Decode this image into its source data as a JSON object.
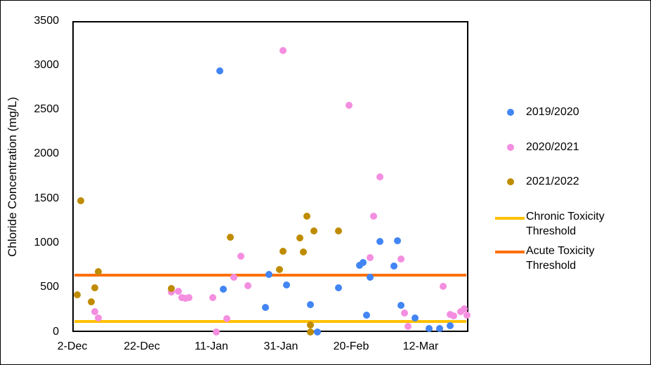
{
  "chart_data": {
    "type": "scatter",
    "title": "",
    "xlabel": "",
    "ylabel": "Chloride Concentration (mg/L)",
    "ylim": [
      0,
      3500
    ],
    "yticks": [
      0,
      500,
      1000,
      1500,
      2000,
      2500,
      3000,
      3500
    ],
    "xticks": [
      "2-Dec",
      "22-Dec",
      "11-Jan",
      "31-Jan",
      "20-Feb",
      "12-Mar"
    ],
    "x_unit": "days since 2-Dec",
    "xlim": [
      0,
      113
    ],
    "grid": false,
    "legend_position": "right",
    "series": [
      {
        "name": "2019/2020",
        "color": "#4285f4",
        "points": [
          [
            42,
            2940
          ],
          [
            43,
            480
          ],
          [
            55,
            280
          ],
          [
            56,
            650
          ],
          [
            61,
            530
          ],
          [
            68,
            310
          ],
          [
            70,
            0
          ],
          [
            76,
            500
          ],
          [
            82,
            750
          ],
          [
            83,
            780
          ],
          [
            84,
            190
          ],
          [
            85,
            620
          ],
          [
            88,
            1020
          ],
          [
            92,
            740
          ],
          [
            93,
            1030
          ],
          [
            94,
            300
          ],
          [
            98,
            160
          ],
          [
            102,
            40
          ],
          [
            105,
            40
          ],
          [
            108,
            70
          ]
        ]
      },
      {
        "name": "2020/2021",
        "color": "#f48ee0",
        "points": [
          [
            6,
            230
          ],
          [
            7,
            160
          ],
          [
            28,
            450
          ],
          [
            30,
            460
          ],
          [
            31,
            390
          ],
          [
            32,
            380
          ],
          [
            33,
            390
          ],
          [
            40,
            390
          ],
          [
            41,
            0
          ],
          [
            44,
            150
          ],
          [
            46,
            620
          ],
          [
            48,
            850
          ],
          [
            50,
            520
          ],
          [
            60,
            3170
          ],
          [
            79,
            2550
          ],
          [
            85,
            840
          ],
          [
            86,
            1300
          ],
          [
            88,
            1750
          ],
          [
            94,
            820
          ],
          [
            95,
            210
          ],
          [
            96,
            60
          ],
          [
            106,
            510
          ],
          [
            108,
            200
          ],
          [
            109,
            180
          ],
          [
            111,
            230
          ],
          [
            112,
            260
          ],
          [
            113,
            190
          ]
        ]
      },
      {
        "name": "2021/2022",
        "color": "#bf8c00",
        "points": [
          [
            1,
            420
          ],
          [
            2,
            1480
          ],
          [
            5,
            340
          ],
          [
            6,
            500
          ],
          [
            7,
            680
          ],
          [
            28,
            490
          ],
          [
            45,
            1070
          ],
          [
            59,
            700
          ],
          [
            60,
            910
          ],
          [
            65,
            1060
          ],
          [
            66,
            900
          ],
          [
            67,
            1300
          ],
          [
            68,
            80
          ],
          [
            68,
            0
          ],
          [
            69,
            1140
          ],
          [
            76,
            1140
          ]
        ]
      },
      {
        "name": "Chronic Toxicity Threshold",
        "color": "#ffc000",
        "type": "hline",
        "y": 120
      },
      {
        "name": "Acute Toxicity Threshold",
        "color": "#ff6f00",
        "type": "hline",
        "y": 640
      }
    ]
  },
  "legend": {
    "items": [
      {
        "label": "2019/2020",
        "line2": ""
      },
      {
        "label": "2020/2021",
        "line2": ""
      },
      {
        "label": "2021/2022",
        "line2": ""
      },
      {
        "label": "Chronic Toxicity",
        "line2": "Threshold"
      },
      {
        "label": "Acute Toxicity",
        "line2": "Threshold"
      }
    ]
  },
  "axis": {
    "ylabel": "Chloride Concentration (mg/L)",
    "yticks": [
      "3500",
      "3000",
      "2500",
      "2000",
      "1500",
      "1000",
      "500",
      "0"
    ],
    "xticks": [
      "2-Dec",
      "22-Dec",
      "11-Jan",
      "31-Jan",
      "20-Feb",
      "12-Mar"
    ]
  }
}
